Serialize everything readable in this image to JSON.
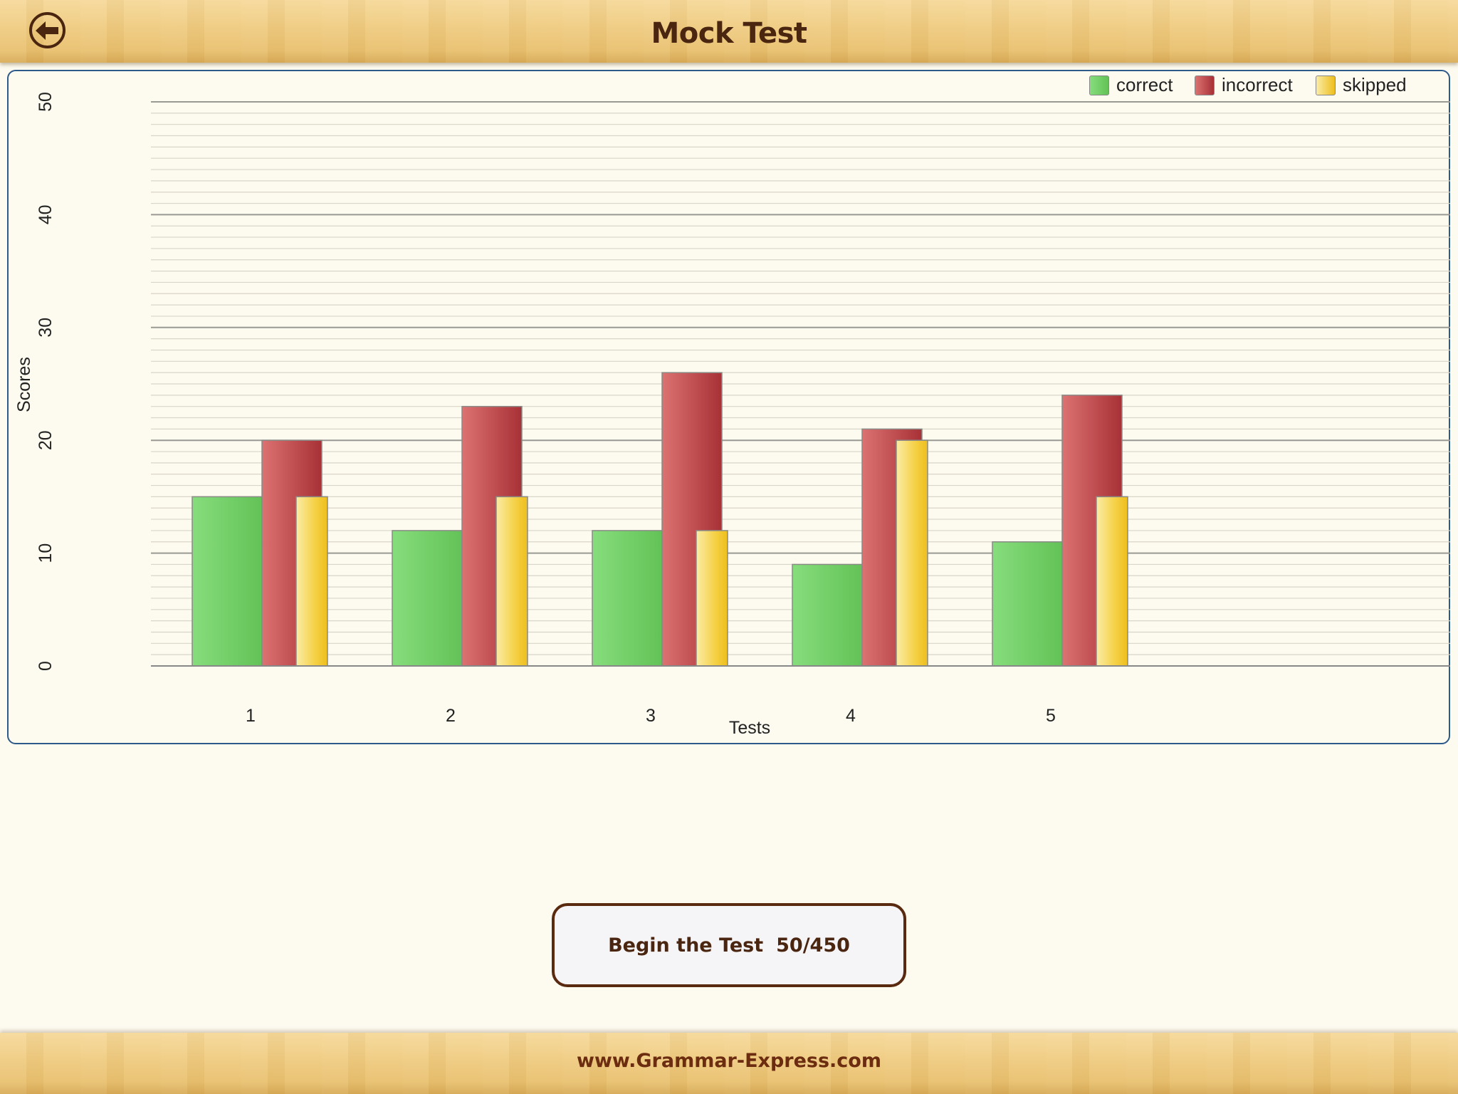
{
  "header": {
    "title": "Mock Test",
    "back_icon": "arrow-left-icon"
  },
  "footer": {
    "url": "www.Grammar-Express.com"
  },
  "action": {
    "label": "Begin the Test",
    "progress": "50/450"
  },
  "colors": {
    "correct": "#6fcf62",
    "incorrect": "#c2484c",
    "skipped": "#f4cc30",
    "brown": "#4a2510"
  },
  "chart_data": {
    "type": "bar",
    "xlabel": "Tests",
    "ylabel": "Scores",
    "ylim": [
      0,
      50
    ],
    "yticks": [
      0,
      10,
      20,
      30,
      40,
      50
    ],
    "categories": [
      "1",
      "2",
      "3",
      "4",
      "5"
    ],
    "series": [
      {
        "name": "correct",
        "values": [
          15,
          12,
          12,
          9,
          11
        ]
      },
      {
        "name": "incorrect",
        "values": [
          20,
          23,
          26,
          21,
          24
        ]
      },
      {
        "name": "skipped",
        "values": [
          15,
          15,
          12,
          20,
          15
        ]
      }
    ],
    "legend": "top-right",
    "grid": true
  }
}
